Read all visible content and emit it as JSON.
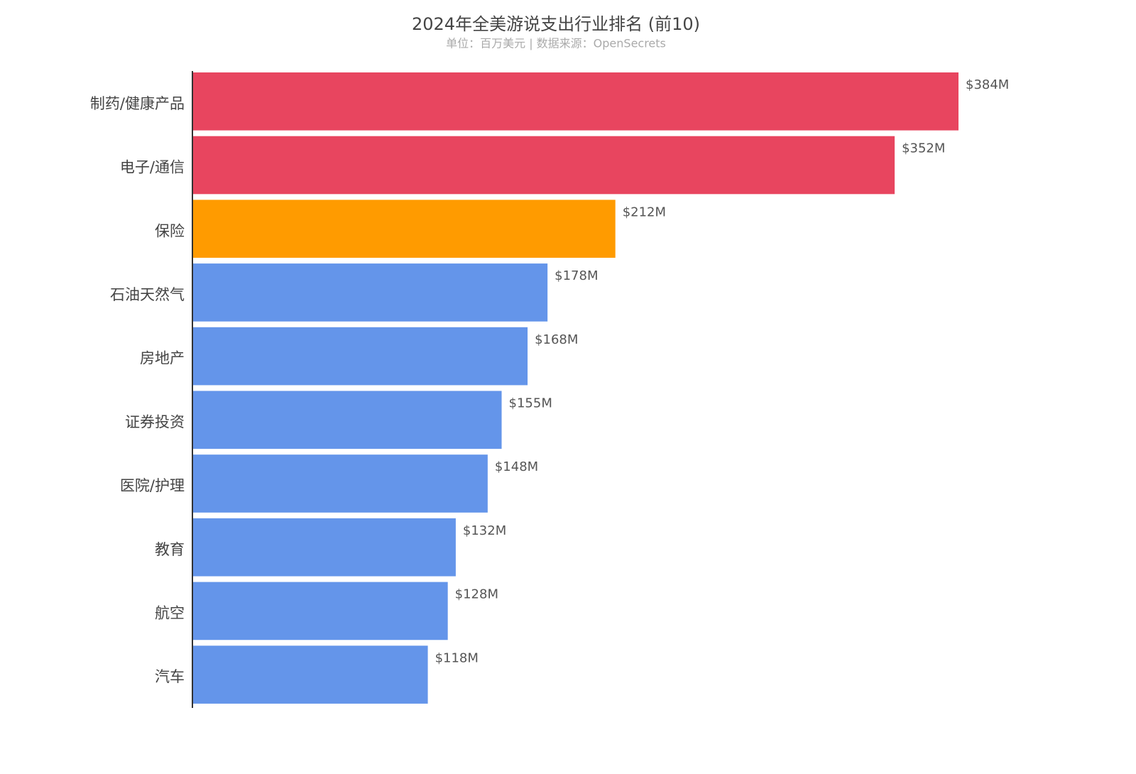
{
  "chart_data": {
    "type": "bar",
    "orientation": "horizontal",
    "title": "2024年全美游说支出行业排名 (前10)",
    "subtitle": "单位：百万美元 | 数据来源：OpenSecrets",
    "categories": [
      "制药/健康产品",
      "电子/通信",
      "保险",
      "石油天然气",
      "房地产",
      "证券投资",
      "医院/护理",
      "教育",
      "航空",
      "汽车"
    ],
    "values": [
      384,
      352,
      212,
      178,
      168,
      155,
      148,
      132,
      128,
      118
    ],
    "value_labels": [
      "$384M",
      "$352M",
      "$212M",
      "$178M",
      "$168M",
      "$155M",
      "$148M",
      "$132M",
      "$128M",
      "$118M"
    ],
    "colors": [
      "#e8455f",
      "#e8455f",
      "#ff9b00",
      "#6495ea",
      "#6495ea",
      "#6495ea",
      "#6495ea",
      "#6495ea",
      "#6495ea",
      "#6495ea"
    ],
    "xlim": [
      0,
      384
    ]
  }
}
